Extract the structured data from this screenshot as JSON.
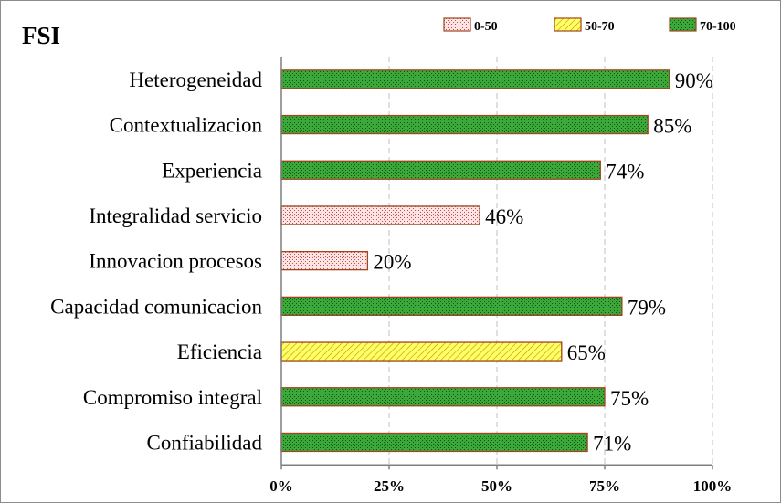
{
  "chart_data": {
    "type": "bar",
    "orientation": "horizontal",
    "title": "FSI",
    "xlabel": "",
    "ylabel": "",
    "xlim": [
      0,
      100
    ],
    "x_ticks": [
      "0%",
      "25%",
      "50%",
      "75%",
      "100%"
    ],
    "grid": "vertical dashed",
    "legend_position": "top-right",
    "legend": [
      {
        "label": "0-50",
        "fill": "#fde4e4",
        "dot": "#c0504d",
        "stroke": "#a0451f"
      },
      {
        "label": "50-70",
        "fill": "#ffff66",
        "dot": "#c09000",
        "stroke": "#a0451f"
      },
      {
        "label": "70-100",
        "fill": "#3ca83c",
        "dot": "#0a5a0a",
        "stroke": "#a0451f"
      }
    ],
    "categories": [
      "Heterogeneidad",
      "Contextualizacion",
      "Experiencia",
      "Integralidad servicio",
      "Innovacion procesos",
      "Capacidad comunicacion",
      "Eficiencia",
      "Compromiso integral",
      "Confiabilidad"
    ],
    "values": [
      90,
      85,
      74,
      46,
      20,
      79,
      65,
      75,
      71
    ],
    "value_labels": [
      "90%",
      "85%",
      "74%",
      "46%",
      "20%",
      "79%",
      "65%",
      "75%",
      "71%"
    ],
    "bar_band": [
      "70-100",
      "70-100",
      "70-100",
      "0-50",
      "0-50",
      "70-100",
      "50-70",
      "70-100",
      "70-100"
    ]
  }
}
